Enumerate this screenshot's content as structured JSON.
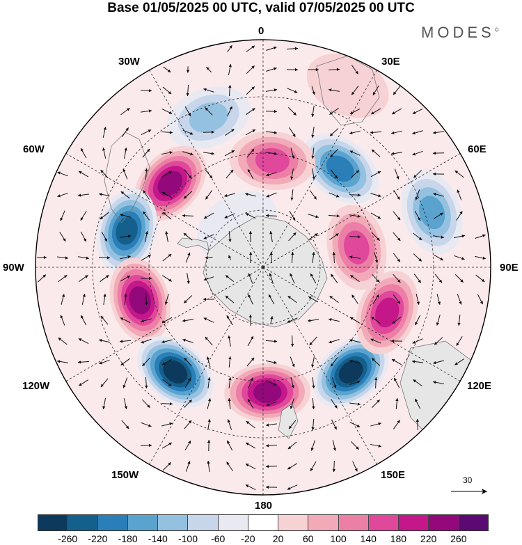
{
  "title": "Base 01/05/2025 00 UTC, valid 07/05/2025 00 UTC",
  "brand": "MODES",
  "brand_mark": "©",
  "map_labels": {
    "lon_0": "0",
    "lon_30e": "30E",
    "lon_60e": "60E",
    "lon_90e": "90E",
    "lon_120e": "120E",
    "lon_150e": "150E",
    "lon_180": "180",
    "lon_150w": "150W",
    "lon_120w": "120W",
    "lon_90w": "90W",
    "lon_60w": "60W",
    "lon_30w": "30W"
  },
  "reference_vector": "30",
  "colorbar": {
    "colors": [
      "#0d3a5c",
      "#145f8c",
      "#2a7fb8",
      "#5aa3cf",
      "#95c1e1",
      "#c7d6ea",
      "#e9e9f2",
      "#ffffff",
      "#f7d2d5",
      "#f2a9b8",
      "#ec7fa6",
      "#e0489b",
      "#c4188a",
      "#93097c",
      "#5c0a73"
    ],
    "ticks": [
      "-260",
      "-220",
      "-180",
      "-140",
      "-100",
      "-60",
      "-20",
      "20",
      "60",
      "100",
      "140",
      "180",
      "220",
      "260"
    ]
  },
  "anomaly_centers": [
    {
      "lon": -20,
      "colat": 0.7,
      "value": -100
    },
    {
      "lon": -48,
      "colat": 0.55,
      "value": 220
    },
    {
      "lon": -75,
      "colat": 0.62,
      "value": -240
    },
    {
      "lon": -105,
      "colat": 0.56,
      "value": 240
    },
    {
      "lon": -140,
      "colat": 0.6,
      "value": -260
    },
    {
      "lon": 178,
      "colat": 0.55,
      "value": 240
    },
    {
      "lon": 140,
      "colat": 0.6,
      "value": -260
    },
    {
      "lon": 110,
      "colat": 0.58,
      "value": 200
    },
    {
      "lon": 78,
      "colat": 0.42,
      "value": 160
    },
    {
      "lon": 72,
      "colat": 0.78,
      "value": -140
    },
    {
      "lon": 38,
      "colat": 0.55,
      "value": -180
    },
    {
      "lon": 5,
      "colat": 0.47,
      "value": 160
    },
    {
      "lon": 25,
      "colat": 0.88,
      "value": 40
    },
    {
      "lon": -32,
      "colat": 0.22,
      "value": -40
    }
  ]
}
